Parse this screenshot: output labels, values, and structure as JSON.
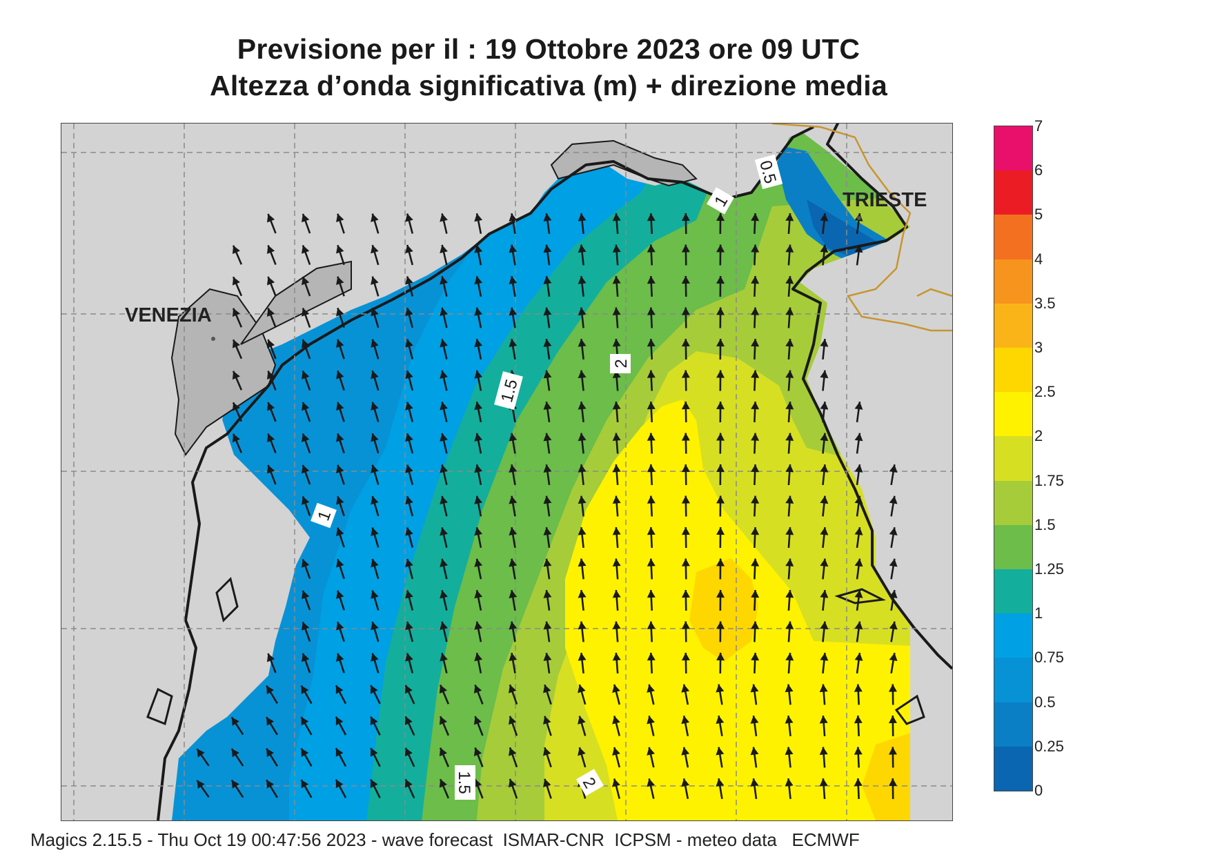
{
  "title": {
    "line1": "Previsione per il  :  19  Ottobre  2023   ore 09 UTC",
    "line2": "Altezza d’onda significativa (m) + direzione media"
  },
  "map": {
    "cities": [
      {
        "key": "venezia",
        "label": "VENEZIA"
      },
      {
        "key": "trieste",
        "label": "TRIESTE"
      }
    ],
    "contour_labels": [
      "0.5",
      "1",
      "1",
      "1.5",
      "2",
      "1.5",
      "2"
    ],
    "colors": {
      "land": "#d3d3d3",
      "coast": "#1a1a1a",
      "border": "#c8952e",
      "grid": "#8a8a8a",
      "arrow": "#1a1a1a"
    },
    "arrow_direction": "north-northwest"
  },
  "legend": {
    "labels": [
      "7",
      "6",
      "5",
      "4",
      "3.5",
      "3",
      "2.5",
      "2",
      "1.75",
      "1.5",
      "1.25",
      "1",
      "0.75",
      "0.5",
      "0.25",
      "0"
    ],
    "colors": [
      "#e8106a",
      "#ec1c24",
      "#f37021",
      "#f7941d",
      "#fbb418",
      "#fed700",
      "#fff200",
      "#d7df23",
      "#a6cc3a",
      "#6cbd4a",
      "#14ae9c",
      "#00a0e4",
      "#0892d6",
      "#0a7fc5",
      "#0a66b0"
    ]
  },
  "footer": "Magics 2.15.5 - Thu Oct 19 00:47:56 2023 - wave forecast  ISMAR-CNR  ICPSM - meteo data   ECMWF"
}
